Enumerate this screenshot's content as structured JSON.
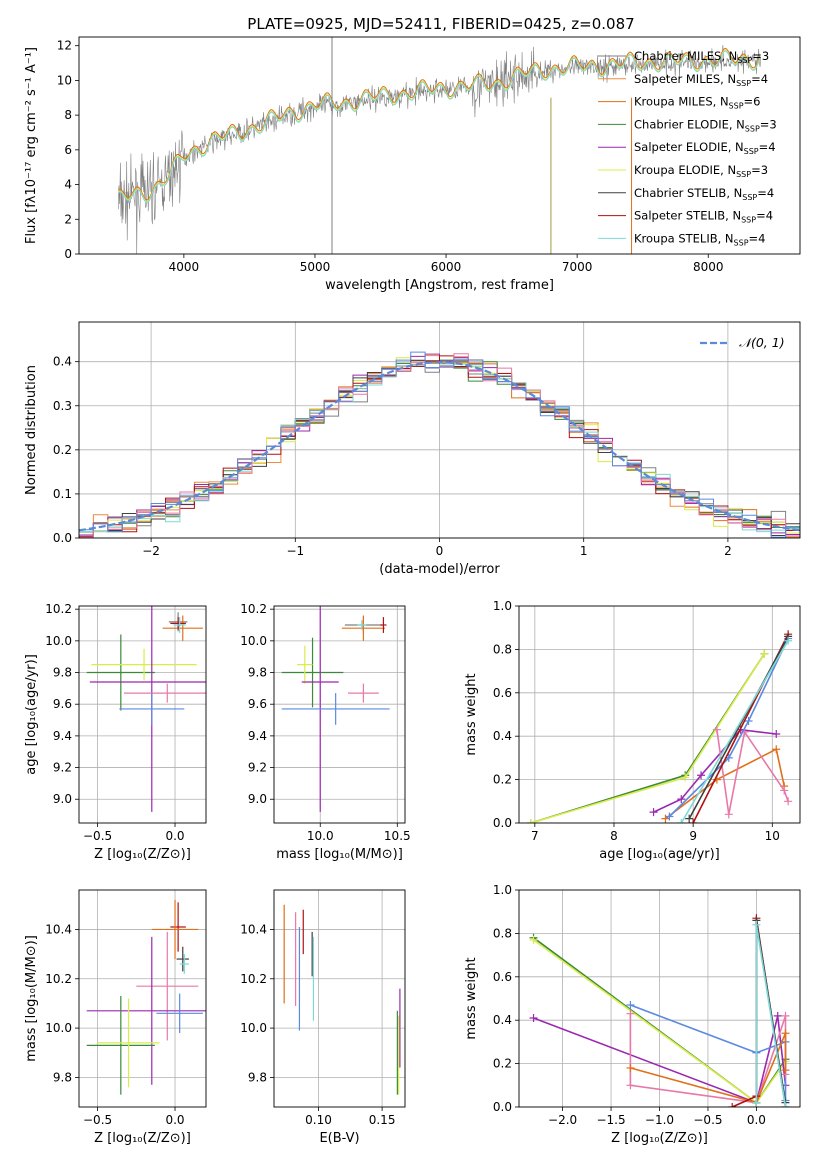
{
  "colors": {
    "chabrier_miles": "#808080",
    "salpeter_miles": "#f08a3b",
    "kroupa_miles": "#e0701a",
    "chabrier_elodie": "#3a8a3a",
    "salpeter_elodie": "#9a28b0",
    "kroupa_elodie": "#d9ec4a",
    "chabrier_stelib": "#404040",
    "salpeter_stelib": "#b01010",
    "kroupa_stelib": "#7ed8d8",
    "pink": "#e878a8",
    "blue": "#5a8ae0",
    "lime": "#b8e040",
    "normal": "#5a8ad8"
  },
  "chart_data": [
    {
      "id": "spectrum",
      "type": "line",
      "title": "PLATE=0925, MJD=52411, FIBERID=0425, z=0.087",
      "xlabel": "wavelength [Angstrom, rest frame]",
      "ylabel": "Flux [fλ10⁻¹⁷ erg cm⁻² s⁻¹ A⁻¹]",
      "xlim": [
        3200,
        8700
      ],
      "ylim": [
        0,
        12.5
      ],
      "xticks": [
        4000,
        5000,
        6000,
        7000,
        8000
      ],
      "yticks": [
        0,
        2,
        4,
        6,
        8,
        10,
        12
      ],
      "grid": false,
      "legend_position": "top-right",
      "legend": [
        {
          "label": "Chabrier MILES, N",
          "sub": "SSP",
          "tail": "=3",
          "color": "#808080"
        },
        {
          "label": "Salpeter MILES, N",
          "sub": "SSP",
          "tail": "=4",
          "color": "#f08a3b"
        },
        {
          "label": "Kroupa MILES, N",
          "sub": "SSP",
          "tail": "=6",
          "color": "#e0701a"
        },
        {
          "label": "Chabrier ELODIE, N",
          "sub": "SSP",
          "tail": "=3",
          "color": "#3a8a3a"
        },
        {
          "label": "Salpeter ELODIE, N",
          "sub": "SSP",
          "tail": "=4",
          "color": "#9a28b0"
        },
        {
          "label": "Kroupa ELODIE, N",
          "sub": "SSP",
          "tail": "=3",
          "color": "#d9ec4a"
        },
        {
          "label": "Chabrier STELIB, N",
          "sub": "SSP",
          "tail": "=4",
          "color": "#404040"
        },
        {
          "label": "Salpeter STELIB, N",
          "sub": "SSP",
          "tail": "=4",
          "color": "#b01010"
        },
        {
          "label": "Kroupa STELIB, N",
          "sub": "SSP",
          "tail": "=4",
          "color": "#7ed8d8"
        }
      ],
      "continuum": {
        "x": [
          3500,
          3600,
          3700,
          3800,
          3900,
          4000,
          4200,
          4400,
          4600,
          4800,
          5000,
          5200,
          5400,
          5600,
          5800,
          6000,
          6200,
          6400,
          6600,
          6800,
          7000,
          7200,
          7400,
          7600,
          7800,
          8000,
          8200,
          8400
        ],
        "y": [
          3.0,
          3.3,
          3.5,
          3.8,
          4.5,
          5.6,
          6.4,
          6.9,
          7.4,
          8.0,
          8.5,
          8.6,
          8.9,
          9.1,
          9.3,
          9.5,
          9.6,
          9.8,
          10.3,
          10.6,
          10.7,
          10.8,
          10.9,
          11.0,
          11.0,
          11.1,
          11.1,
          11.2
        ]
      }
    },
    {
      "id": "residuals",
      "type": "histogram",
      "xlabel": "(data-model)/error",
      "ylabel": "Normed distribution",
      "xlim": [
        -2.5,
        2.5
      ],
      "ylim": [
        0,
        0.49
      ],
      "xticks": [
        -2,
        -1,
        0,
        1,
        2
      ],
      "yticks": [
        0.0,
        0.1,
        0.2,
        0.3,
        0.4
      ],
      "grid": true,
      "legend_position": "top-right",
      "legend_label": "𝒩(0, 1)",
      "curve": {
        "name": "N(0,1)",
        "mean": 0,
        "sigma": 1
      }
    },
    {
      "id": "age_vs_Z",
      "type": "errorbar",
      "xlabel": "Z [log₁₀(Z/Z⊙)]",
      "ylabel": "age  [log₁₀(age/yr)]",
      "xlim": [
        -0.62,
        0.2
      ],
      "ylim": [
        8.85,
        10.22
      ],
      "xticks": [
        -0.5,
        0.0
      ],
      "yticks": [
        9.0,
        9.2,
        9.4,
        9.6,
        9.8,
        10.0,
        10.2
      ],
      "grid": true,
      "points": [
        {
          "x": 0.02,
          "y": 10.12,
          "xerr": 0.06,
          "yerr": 0.06,
          "color": "#808080"
        },
        {
          "x": 0.05,
          "y": 10.08,
          "xerr": 0.13,
          "yerr": 0.08,
          "color": "#e0701a"
        },
        {
          "x": 0.02,
          "y": 10.11,
          "xerr": 0.05,
          "yerr": 0.04,
          "color": "#b01010"
        },
        {
          "x": 0.03,
          "y": 10.1,
          "xerr": 0.04,
          "yerr": 0.05,
          "color": "#7ed8d8"
        },
        {
          "x": -0.35,
          "y": 9.8,
          "xerr": 0.22,
          "yerr": 0.24,
          "color": "#3a8a3a"
        },
        {
          "x": -0.2,
          "y": 9.85,
          "xerr": 0.34,
          "yerr": 0.1,
          "color": "#d9ec4a"
        },
        {
          "x": -0.15,
          "y": 9.74,
          "xerr": 0.4,
          "yerr": 0.82,
          "color": "#9a28b0"
        },
        {
          "x": -0.05,
          "y": 9.67,
          "xerr": 0.28,
          "yerr": 0.06,
          "color": "#e878a8"
        },
        {
          "x": -0.15,
          "y": 9.57,
          "xerr": 0.21,
          "yerr": 0.1,
          "color": "#5a8ae0"
        }
      ]
    },
    {
      "id": "age_vs_mass",
      "type": "errorbar",
      "xlabel": "mass [log₁₀(M/M⊙)]",
      "ylabel": "",
      "xlim": [
        9.7,
        10.55
      ],
      "ylim": [
        8.85,
        10.22
      ],
      "xticks": [
        10.0,
        10.5
      ],
      "yticks": [
        9.0,
        9.2,
        9.4,
        9.6,
        9.8,
        10.0,
        10.2
      ],
      "grid": true,
      "points": [
        {
          "x": 10.28,
          "y": 10.1,
          "xerr": 0.12,
          "yerr": 0.05,
          "color": "#808080"
        },
        {
          "x": 10.28,
          "y": 10.08,
          "xerr": 0.14,
          "yerr": 0.08,
          "color": "#e0701a"
        },
        {
          "x": 10.41,
          "y": 10.1,
          "xerr": 0.02,
          "yerr": 0.05,
          "color": "#b01010"
        },
        {
          "x": 10.27,
          "y": 10.1,
          "xerr": 0.03,
          "yerr": 0.03,
          "color": "#7ed8d8"
        },
        {
          "x": 9.95,
          "y": 9.8,
          "xerr": 0.2,
          "yerr": 0.22,
          "color": "#3a8a3a"
        },
        {
          "x": 9.9,
          "y": 9.85,
          "xerr": 0.05,
          "yerr": 0.12,
          "color": "#d9ec4a"
        },
        {
          "x": 10.0,
          "y": 9.74,
          "xerr": 0.12,
          "yerr": 0.82,
          "color": "#9a28b0"
        },
        {
          "x": 10.28,
          "y": 9.67,
          "xerr": 0.1,
          "yerr": 0.06,
          "color": "#e878a8"
        },
        {
          "x": 10.1,
          "y": 9.57,
          "xerr": 0.35,
          "yerr": 0.1,
          "color": "#5a8ae0"
        }
      ]
    },
    {
      "id": "massweight_vs_age",
      "type": "line",
      "xlabel": "age  [log₁₀(age/yr)]",
      "ylabel": "mass weight",
      "xlim": [
        6.8,
        10.35
      ],
      "ylim": [
        0,
        1.0
      ],
      "xticks": [
        7,
        8,
        9,
        10
      ],
      "yticks": [
        0.0,
        0.2,
        0.4,
        0.6,
        0.8,
        1.0
      ],
      "grid": true,
      "series": [
        {
          "color": "#3a8a3a",
          "x": [
            6.95,
            8.9,
            9.9
          ],
          "y": [
            0.0,
            0.22,
            0.78
          ]
        },
        {
          "color": "#d9ec4a",
          "x": [
            6.95,
            8.9,
            9.9
          ],
          "y": [
            0.0,
            0.21,
            0.78
          ]
        },
        {
          "color": "#e0701a",
          "x": [
            8.65,
            9.3,
            10.05,
            10.15
          ],
          "y": [
            0.02,
            0.2,
            0.34,
            0.17
          ]
        },
        {
          "color": "#9a28b0",
          "x": [
            8.5,
            8.85,
            9.1,
            9.6,
            10.05
          ],
          "y": [
            0.05,
            0.11,
            0.22,
            0.43,
            0.41
          ]
        },
        {
          "color": "#e878a8",
          "x": [
            9.3,
            9.45,
            9.65,
            10.15,
            10.2
          ],
          "y": [
            0.43,
            0.04,
            0.42,
            0.15,
            0.1
          ]
        },
        {
          "color": "#5a8ae0",
          "x": [
            8.7,
            9.45,
            9.7,
            10.2
          ],
          "y": [
            0.03,
            0.3,
            0.47,
            0.85
          ]
        },
        {
          "color": "#b01010",
          "x": [
            9.0,
            10.2
          ],
          "y": [
            0.0,
            0.87
          ]
        },
        {
          "color": "#404040",
          "x": [
            8.95,
            10.2
          ],
          "y": [
            0.02,
            0.86
          ]
        },
        {
          "color": "#7ed8d8",
          "x": [
            8.85,
            10.2
          ],
          "y": [
            0.0,
            0.84
          ]
        }
      ]
    },
    {
      "id": "mass_vs_Z",
      "type": "errorbar",
      "xlabel": "Z [log₁₀(Z/Z⊙)]",
      "ylabel": "mass [log₁₀(M/M⊙)]",
      "xlim": [
        -0.62,
        0.2
      ],
      "ylim": [
        9.68,
        10.56
      ],
      "xticks": [
        -0.5,
        0.0
      ],
      "yticks": [
        9.8,
        10.0,
        10.2,
        10.4
      ],
      "grid": true,
      "points": [
        {
          "x": 0.02,
          "y": 10.41,
          "xerr": 0.05,
          "yerr": 0.1,
          "color": "#b01010"
        },
        {
          "x": 0.0,
          "y": 10.4,
          "xerr": 0.15,
          "yerr": 0.12,
          "color": "#e0701a"
        },
        {
          "x": 0.05,
          "y": 10.28,
          "xerr": 0.04,
          "yerr": 0.05,
          "color": "#404040"
        },
        {
          "x": 0.06,
          "y": 10.26,
          "xerr": 0.03,
          "yerr": 0.04,
          "color": "#7ed8d8"
        },
        {
          "x": -0.05,
          "y": 10.17,
          "xerr": 0.2,
          "yerr": 0.22,
          "color": "#e878a8"
        },
        {
          "x": -0.15,
          "y": 10.07,
          "xerr": 0.42,
          "yerr": 0.3,
          "color": "#9a28b0"
        },
        {
          "x": 0.03,
          "y": 10.06,
          "xerr": 0.15,
          "yerr": 0.08,
          "color": "#5a8ae0"
        },
        {
          "x": -0.35,
          "y": 9.93,
          "xerr": 0.22,
          "yerr": 0.2,
          "color": "#3a8a3a"
        },
        {
          "x": -0.3,
          "y": 9.94,
          "xerr": 0.2,
          "yerr": 0.18,
          "color": "#d9ec4a"
        }
      ]
    },
    {
      "id": "mass_vs_ebv",
      "type": "errorbar",
      "xlabel": "E(B-V)",
      "ylabel": "",
      "xlim": [
        0.065,
        0.168
      ],
      "ylim": [
        9.68,
        10.56
      ],
      "xticks": [
        0.1,
        0.15
      ],
      "yticks": [
        9.8,
        10.0,
        10.2,
        10.4
      ],
      "grid": true,
      "points": [
        {
          "x": 0.073,
          "y": 10.3,
          "xerr": 0,
          "yerr": 0.2,
          "color": "#e0701a"
        },
        {
          "x": 0.082,
          "y": 10.28,
          "xerr": 0,
          "yerr": 0.19,
          "color": "#e878a8"
        },
        {
          "x": 0.085,
          "y": 10.2,
          "xerr": 0,
          "yerr": 0.21,
          "color": "#5a8ae0"
        },
        {
          "x": 0.088,
          "y": 10.39,
          "xerr": 0,
          "yerr": 0.09,
          "color": "#b01010"
        },
        {
          "x": 0.095,
          "y": 10.3,
          "xerr": 0,
          "yerr": 0.09,
          "color": "#404040"
        },
        {
          "x": 0.096,
          "y": 10.2,
          "xerr": 0,
          "yerr": 0.17,
          "color": "#7ed8d8"
        },
        {
          "x": 0.162,
          "y": 9.9,
          "xerr": 0,
          "yerr": 0.17,
          "color": "#3a8a3a"
        },
        {
          "x": 0.163,
          "y": 9.89,
          "xerr": 0,
          "yerr": 0.16,
          "color": "#d9ec4a"
        },
        {
          "x": 0.164,
          "y": 10.0,
          "xerr": 0,
          "yerr": 0.16,
          "color": "#9a28b0"
        }
      ]
    },
    {
      "id": "massweight_vs_Z",
      "type": "line",
      "xlabel": "Z [log₁₀(Z/Z⊙)]",
      "ylabel": "mass weight",
      "xlim": [
        -2.45,
        0.45
      ],
      "ylim": [
        0,
        1.0
      ],
      "xticks": [
        -2.0,
        -1.5,
        -1.0,
        -0.5,
        0.0
      ],
      "yticks": [
        0.0,
        0.2,
        0.4,
        0.6,
        0.8,
        1.0
      ],
      "grid": true,
      "series": [
        {
          "color": "#3a8a3a",
          "x": [
            -2.3,
            0.0,
            0.3
          ],
          "y": [
            0.78,
            0.02,
            0.22
          ]
        },
        {
          "color": "#d9ec4a",
          "x": [
            -2.3,
            0.0,
            0.3
          ],
          "y": [
            0.77,
            0.02,
            0.21
          ]
        },
        {
          "color": "#9a28b0",
          "x": [
            -2.3,
            0.0,
            0.22,
            0.3
          ],
          "y": [
            0.41,
            0.02,
            0.42,
            0.1
          ]
        },
        {
          "color": "#5a8ae0",
          "x": [
            -1.3,
            0.0,
            0.3,
            0.3
          ],
          "y": [
            0.47,
            0.25,
            0.3,
            0.03
          ]
        },
        {
          "color": "#e878a8",
          "x": [
            -1.3,
            -1.3,
            0.0,
            0.3,
            0.3
          ],
          "y": [
            0.43,
            0.1,
            0.02,
            0.42,
            0.15
          ]
        },
        {
          "color": "#e0701a",
          "x": [
            -1.3,
            0.0,
            0.3,
            0.3
          ],
          "y": [
            0.18,
            0.02,
            0.34,
            0.17
          ]
        },
        {
          "color": "#b01010",
          "x": [
            -0.25,
            0.0,
            0.0,
            0.3
          ],
          "y": [
            0.0,
            0.05,
            0.87,
            0.0
          ]
        },
        {
          "color": "#404040",
          "x": [
            0.0,
            0.0,
            0.3
          ],
          "y": [
            0.02,
            0.86,
            0.02
          ]
        },
        {
          "color": "#7ed8d8",
          "x": [
            0.0,
            0.0,
            0.3
          ],
          "y": [
            0.02,
            0.84,
            0.0
          ]
        }
      ]
    }
  ]
}
